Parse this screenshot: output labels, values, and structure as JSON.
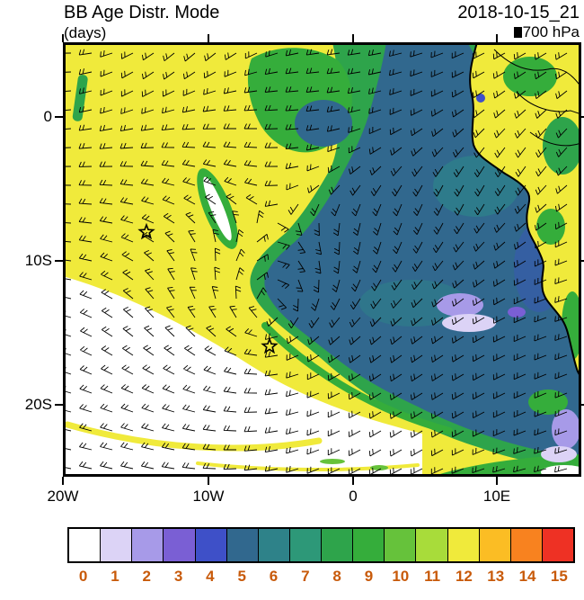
{
  "chart_data": {
    "type": "heatmap",
    "title": "BB Age Distr. Mode",
    "units": "(days)",
    "timestamp": "2018-10-15_21",
    "level": "700 hPa",
    "x_ticks": [
      "20W",
      "10W",
      "0",
      "10E"
    ],
    "y_ticks": [
      "0",
      "10S",
      "20S"
    ],
    "colorbar": {
      "values": [
        "0",
        "1",
        "2",
        "3",
        "4",
        "5",
        "6",
        "7",
        "8",
        "9",
        "10",
        "11",
        "12",
        "13",
        "14",
        "15"
      ],
      "colors": [
        "#ffffff",
        "#dcd3f6",
        "#a79ae8",
        "#7a5fd4",
        "#3e50c8",
        "#31688e",
        "#2e8289",
        "#2d9878",
        "#2ea44b",
        "#35ad3b",
        "#66c23b",
        "#a8dc3a",
        "#f0ea3b",
        "#fbbd24",
        "#f8821f",
        "#ee3124"
      ],
      "tick_label_color": "#c85a0a"
    },
    "frame_color": "#000000",
    "overlays": [
      "wind-barbs",
      "coastline",
      "country-borders",
      "star-markers"
    ],
    "star_markers": [
      {
        "approx_lon": "14W",
        "approx_lat": "8S"
      },
      {
        "approx_lon": "6W",
        "approx_lat": "16S"
      }
    ],
    "estimated_field_regions": [
      {
        "region": "broad aged-smoke plume over northwest and central map",
        "age_days": 12
      },
      {
        "region": "dark plume core stretching southwest from the African coast",
        "age_days": 5
      },
      {
        "region": "green rim surrounding the plume core",
        "age_days": 9
      },
      {
        "region": "pale purple patches near the Angolan coast",
        "age_days": 1
      },
      {
        "region": "smoke-free southwest corner",
        "age_days": 0
      }
    ]
  }
}
